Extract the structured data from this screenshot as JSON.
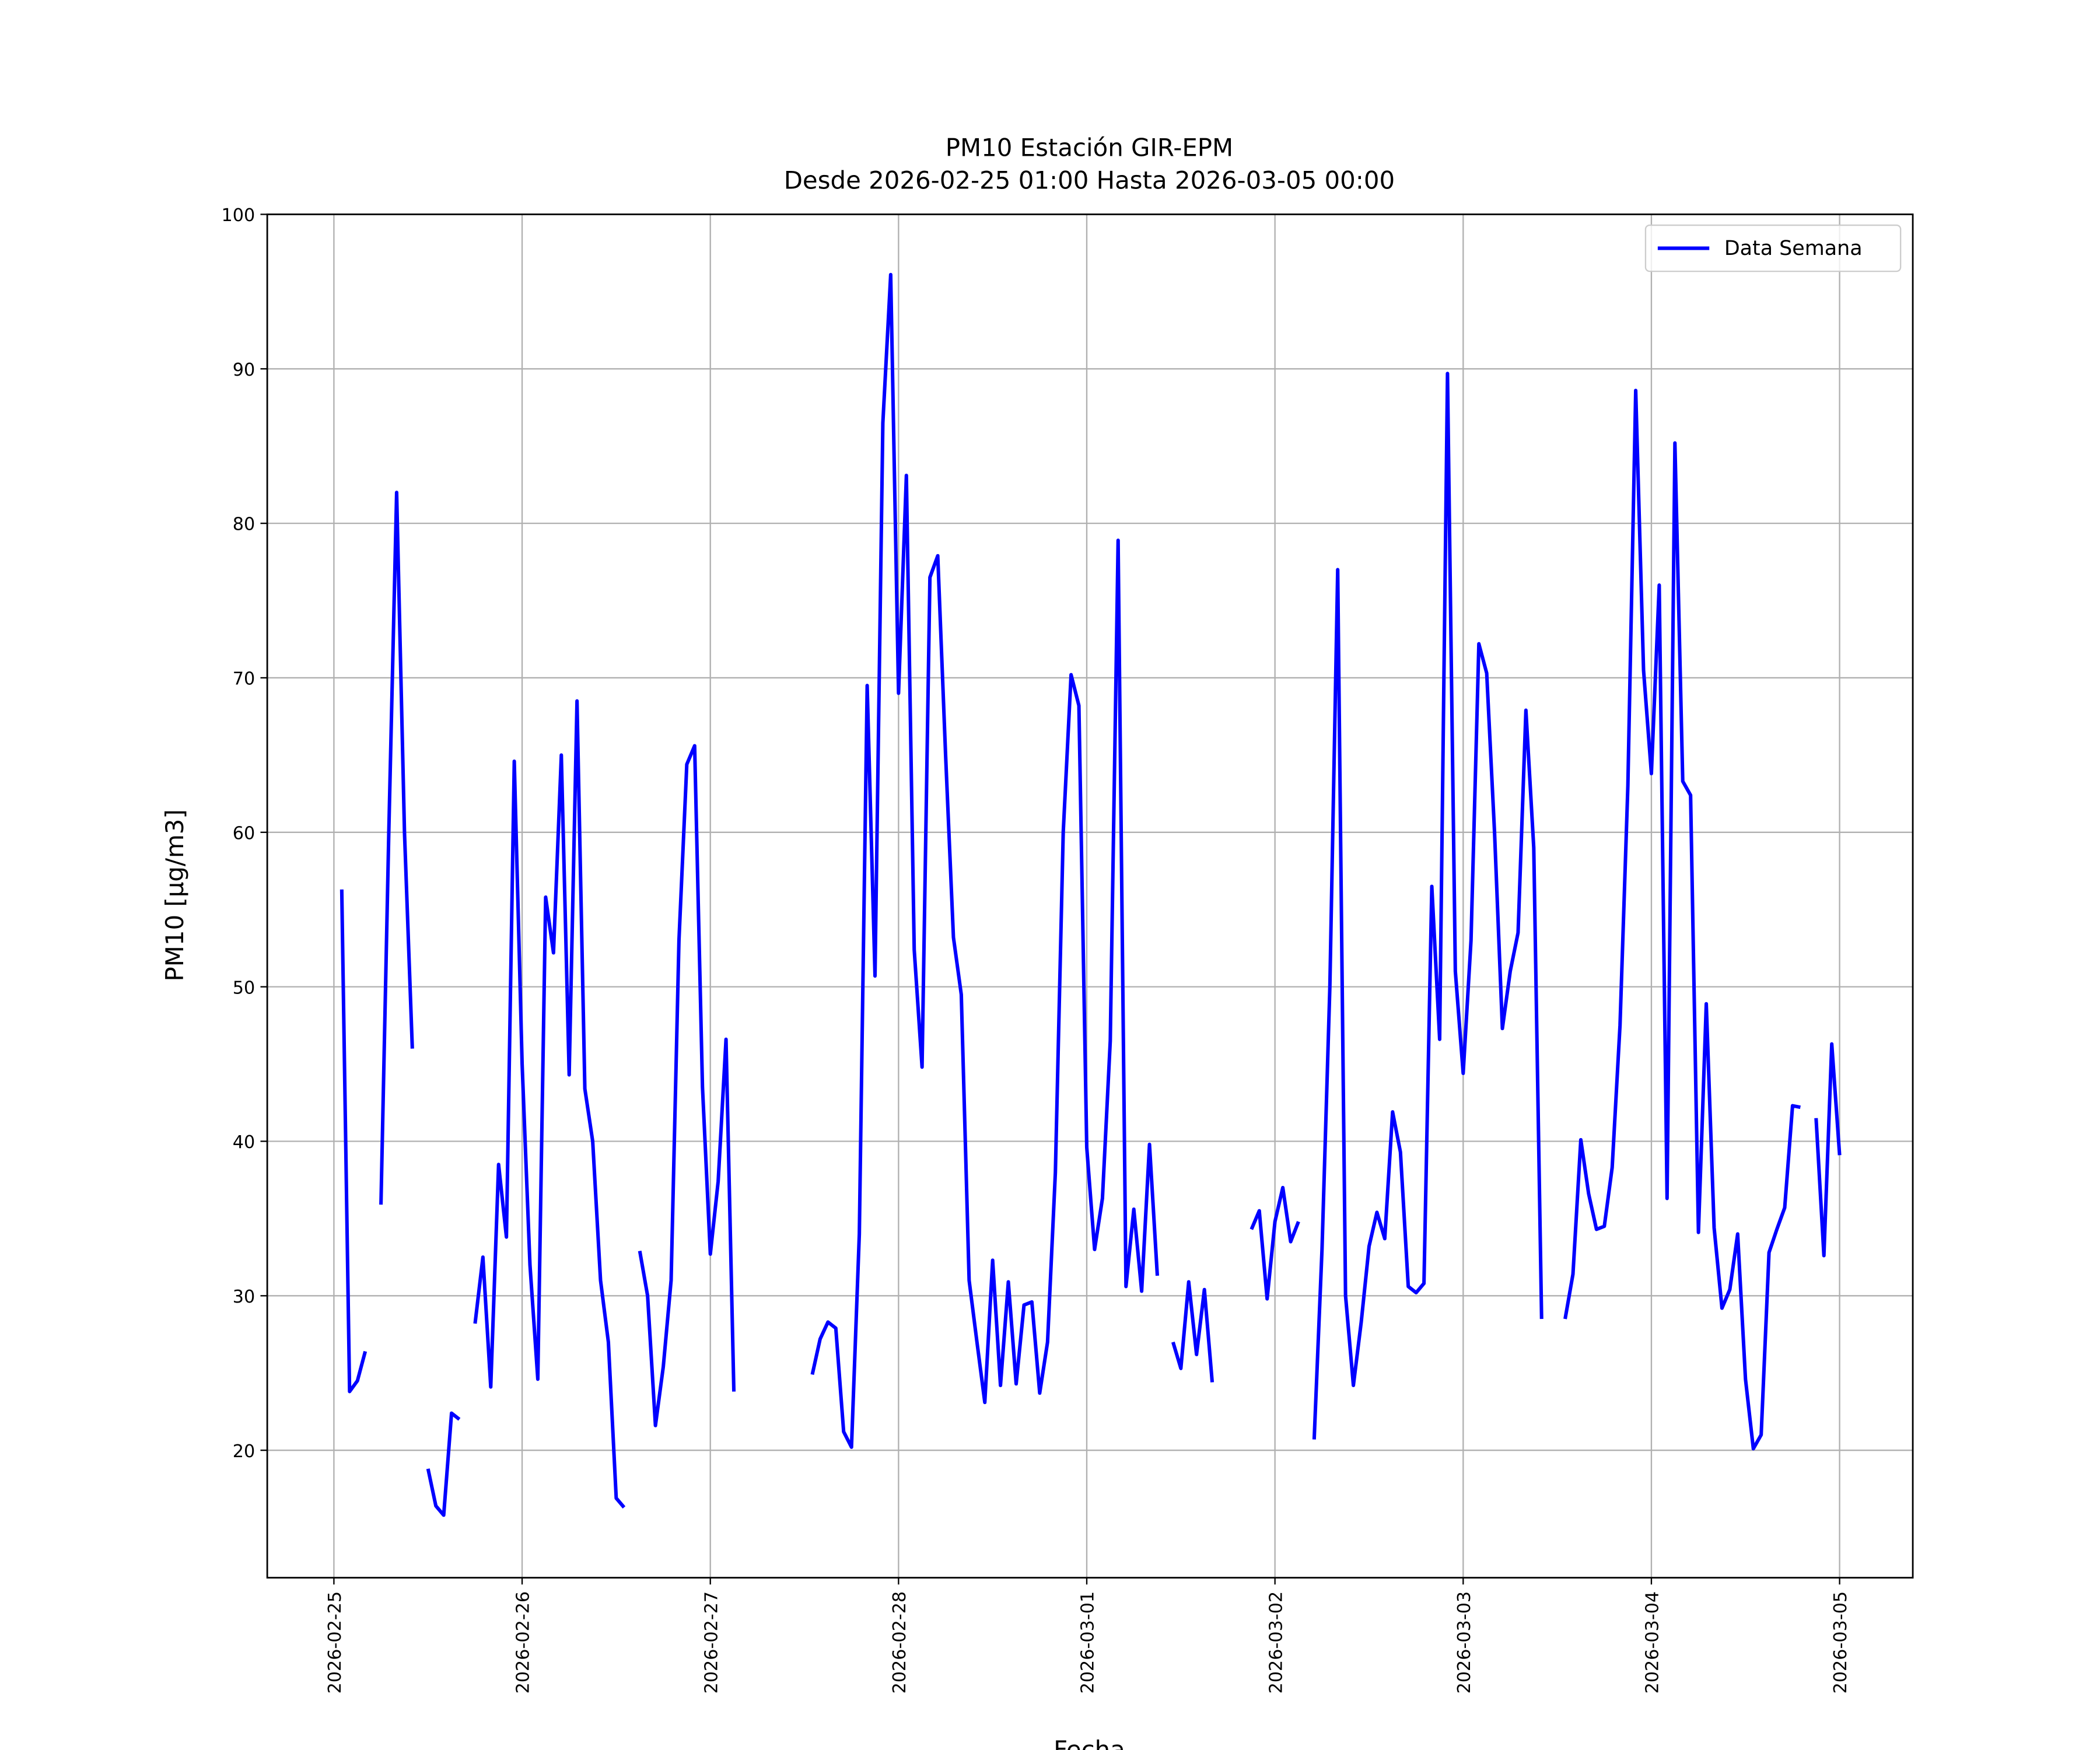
{
  "chart_data": {
    "type": "line",
    "title": "PM10 Estación GIR-EPM",
    "subtitle": "Desde 2026-02-25 01:00 Hasta 2026-03-05 00:00",
    "x_label": "Fecha",
    "y_label": "PM10 [μg/m3]",
    "grid": true,
    "legend": "upper right",
    "xlim": [
      "2026-02-24 15:30",
      "2026-03-05 09:20"
    ],
    "xticks": [
      "2026-02-25",
      "2026-02-26",
      "2026-02-27",
      "2026-02-28",
      "2026-03-01",
      "2026-03-02",
      "2026-03-03",
      "2026-03-04",
      "2026-03-05"
    ],
    "ylim": [
      11.75,
      100
    ],
    "yticks": [
      20,
      30,
      40,
      50,
      60,
      70,
      80,
      90,
      100
    ],
    "x": [
      "2026-02-25 01:00",
      "2026-02-25 02:00",
      "2026-02-25 03:00",
      "2026-02-25 04:00",
      "2026-02-25 05:00",
      "2026-02-25 06:00",
      "2026-02-25 07:00",
      "2026-02-25 08:00",
      "2026-02-25 09:00",
      "2026-02-25 10:00",
      "2026-02-25 11:00",
      "2026-02-25 12:00",
      "2026-02-25 13:00",
      "2026-02-25 14:00",
      "2026-02-25 15:00",
      "2026-02-25 16:00",
      "2026-02-25 17:00",
      "2026-02-25 18:00",
      "2026-02-25 19:00",
      "2026-02-25 20:00",
      "2026-02-25 21:00",
      "2026-02-25 22:00",
      "2026-02-25 23:00",
      "2026-02-26 00:00",
      "2026-02-26 01:00",
      "2026-02-26 02:00",
      "2026-02-26 03:00",
      "2026-02-26 04:00",
      "2026-02-26 05:00",
      "2026-02-26 06:00",
      "2026-02-26 07:00",
      "2026-02-26 08:00",
      "2026-02-26 09:00",
      "2026-02-26 10:00",
      "2026-02-26 11:00",
      "2026-02-26 12:00",
      "2026-02-26 13:00",
      "2026-02-26 14:00",
      "2026-02-26 15:00",
      "2026-02-26 16:00",
      "2026-02-26 17:00",
      "2026-02-26 18:00",
      "2026-02-26 19:00",
      "2026-02-26 20:00",
      "2026-02-26 21:00",
      "2026-02-26 22:00",
      "2026-02-26 23:00",
      "2026-02-27 00:00",
      "2026-02-27 01:00",
      "2026-02-27 02:00",
      "2026-02-27 03:00",
      "2026-02-27 04:00",
      "2026-02-27 05:00",
      "2026-02-27 06:00",
      "2026-02-27 07:00",
      "2026-02-27 08:00",
      "2026-02-27 09:00",
      "2026-02-27 10:00",
      "2026-02-27 11:00",
      "2026-02-27 12:00",
      "2026-02-27 13:00",
      "2026-02-27 14:00",
      "2026-02-27 15:00",
      "2026-02-27 16:00",
      "2026-02-27 17:00",
      "2026-02-27 18:00",
      "2026-02-27 19:00",
      "2026-02-27 20:00",
      "2026-02-27 21:00",
      "2026-02-27 22:00",
      "2026-02-27 23:00",
      "2026-02-28 00:00",
      "2026-02-28 01:00",
      "2026-02-28 02:00",
      "2026-02-28 03:00",
      "2026-02-28 04:00",
      "2026-02-28 05:00",
      "2026-02-28 06:00",
      "2026-02-28 07:00",
      "2026-02-28 08:00",
      "2026-02-28 09:00",
      "2026-02-28 10:00",
      "2026-02-28 11:00",
      "2026-02-28 12:00",
      "2026-02-28 13:00",
      "2026-02-28 14:00",
      "2026-02-28 15:00",
      "2026-02-28 16:00",
      "2026-02-28 17:00",
      "2026-02-28 18:00",
      "2026-02-28 19:00",
      "2026-02-28 20:00",
      "2026-02-28 21:00",
      "2026-02-28 22:00",
      "2026-02-28 23:00",
      "2026-03-01 00:00",
      "2026-03-01 01:00",
      "2026-03-01 02:00",
      "2026-03-01 03:00",
      "2026-03-01 04:00",
      "2026-03-01 05:00",
      "2026-03-01 06:00",
      "2026-03-01 07:00",
      "2026-03-01 08:00",
      "2026-03-01 09:00",
      "2026-03-01 10:00",
      "2026-03-01 11:00",
      "2026-03-01 12:00",
      "2026-03-01 13:00",
      "2026-03-01 14:00",
      "2026-03-01 15:00",
      "2026-03-01 16:00",
      "2026-03-01 17:00",
      "2026-03-01 18:00",
      "2026-03-01 19:00",
      "2026-03-01 20:00",
      "2026-03-01 21:00",
      "2026-03-01 22:00",
      "2026-03-01 23:00",
      "2026-03-02 00:00",
      "2026-03-02 01:00",
      "2026-03-02 02:00",
      "2026-03-02 03:00",
      "2026-03-02 04:00",
      "2026-03-02 05:00",
      "2026-03-02 06:00",
      "2026-03-02 07:00",
      "2026-03-02 08:00",
      "2026-03-02 09:00",
      "2026-03-02 10:00",
      "2026-03-02 11:00",
      "2026-03-02 12:00",
      "2026-03-02 13:00",
      "2026-03-02 14:00",
      "2026-03-02 15:00",
      "2026-03-02 16:00",
      "2026-03-02 17:00",
      "2026-03-02 18:00",
      "2026-03-02 19:00",
      "2026-03-02 20:00",
      "2026-03-02 21:00",
      "2026-03-02 22:00",
      "2026-03-02 23:00",
      "2026-03-03 00:00",
      "2026-03-03 01:00",
      "2026-03-03 02:00",
      "2026-03-03 03:00",
      "2026-03-03 04:00",
      "2026-03-03 05:00",
      "2026-03-03 06:00",
      "2026-03-03 07:00",
      "2026-03-03 08:00",
      "2026-03-03 09:00",
      "2026-03-03 10:00",
      "2026-03-03 11:00",
      "2026-03-03 12:00",
      "2026-03-03 13:00",
      "2026-03-03 14:00",
      "2026-03-03 15:00",
      "2026-03-03 16:00",
      "2026-03-03 17:00",
      "2026-03-03 18:00",
      "2026-03-03 19:00",
      "2026-03-03 20:00",
      "2026-03-03 21:00",
      "2026-03-03 22:00",
      "2026-03-03 23:00",
      "2026-03-04 00:00",
      "2026-03-04 01:00",
      "2026-03-04 02:00",
      "2026-03-04 03:00",
      "2026-03-04 04:00",
      "2026-03-04 05:00",
      "2026-03-04 06:00",
      "2026-03-04 07:00",
      "2026-03-04 08:00",
      "2026-03-04 09:00",
      "2026-03-04 10:00",
      "2026-03-04 11:00",
      "2026-03-04 12:00",
      "2026-03-04 13:00",
      "2026-03-04 14:00",
      "2026-03-04 15:00",
      "2026-03-04 16:00",
      "2026-03-04 17:00",
      "2026-03-04 18:00",
      "2026-03-04 19:00",
      "2026-03-04 20:00",
      "2026-03-04 21:00",
      "2026-03-04 22:00",
      "2026-03-04 23:00",
      "2026-03-05 00:00"
    ],
    "series": [
      {
        "name": "Data Semana",
        "color": "#0000ff",
        "values": [
          56.3,
          23.8,
          24.5,
          26.4,
          null,
          35.9,
          60,
          82,
          60,
          46,
          null,
          18.8,
          16.4,
          15.8,
          22.4,
          22.0,
          null,
          28.2,
          32.5,
          24.1,
          38.5,
          33.8,
          64.6,
          45,
          32,
          24.6,
          55.8,
          52.2,
          65,
          44.3,
          68.5,
          43.4,
          40,
          31,
          27,
          16.9,
          16.3,
          null,
          32.9,
          30,
          21.6,
          25.4,
          31,
          53,
          64.4,
          65.6,
          43.5,
          32.7,
          37.4,
          46.6,
          23.8,
          null,
          null,
          null,
          null,
          null,
          null,
          null,
          null,
          null,
          24.9,
          27.2,
          28.3,
          27.9,
          21.2,
          20.2,
          34,
          69.5,
          50.7,
          86.5,
          96.1,
          69,
          83.1,
          52.4,
          44.8,
          76.5,
          77.9,
          65,
          53.2,
          49.5,
          31,
          27,
          23.1,
          32.3,
          24.2,
          30.9,
          24.3,
          29.4,
          29.6,
          23.7,
          27,
          38,
          60,
          70.2,
          68.2,
          39.6,
          33,
          36.3,
          46.5,
          78.9,
          30.6,
          35.6,
          30.3,
          39.8,
          31.3,
          null,
          27,
          25.3,
          30.9,
          26.2,
          30.4,
          24.4,
          null,
          null,
          null,
          null,
          34.3,
          35.5,
          29.8,
          34.8,
          37,
          33.5,
          34.8,
          null,
          20.7,
          33,
          50,
          77,
          30,
          24.2,
          28.3,
          33.2,
          35.4,
          33.7,
          41.9,
          39.3,
          30.6,
          30.2,
          30.8,
          56.5,
          46.6,
          89.7,
          51,
          44.4,
          53,
          72.2,
          70.3,
          60,
          47.3,
          51,
          53.5,
          67.9,
          59,
          28.5,
          null,
          null,
          28.5,
          31.4,
          40.1,
          36.6,
          34.3,
          34.5,
          38.3,
          47.5,
          63,
          88.6,
          70.5,
          63.8,
          76,
          36.3,
          85.2,
          63.3,
          62.4,
          34.1,
          48.9,
          34.4,
          29.2,
          30.4,
          34,
          24.6,
          20.1,
          21,
          32.8,
          34.3,
          35.7,
          42.3,
          42.2,
          null,
          41.5,
          32.6,
          46.3,
          39.1
        ]
      }
    ]
  }
}
